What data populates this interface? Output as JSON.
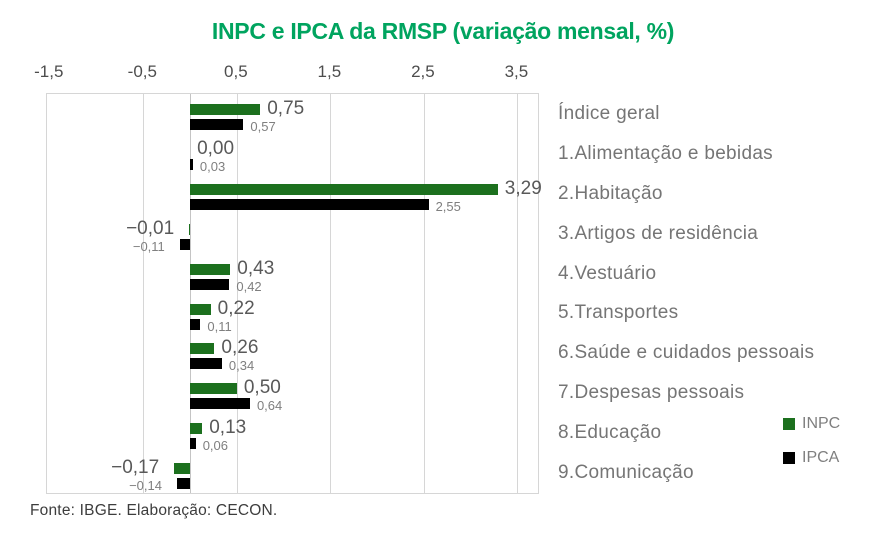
{
  "title": "INPC e IPCA da RMSP (variação mensal, %)",
  "footer": "Fonte: IBGE. Elaboração: CECON.",
  "colors": {
    "title_green": "#00A45F",
    "inpc_green": "#1C701E",
    "ipca_black": "#000000",
    "grid_gray": "#d6d6d6",
    "category_text": "#757575",
    "tick_text": "#4d4d4d",
    "value_label_large": "#595959",
    "value_label_small": "#7f7f7f"
  },
  "chart_data": {
    "type": "bar",
    "orientation": "horizontal",
    "title": "INPC e IPCA da RMSP (variação mensal, %)",
    "xlabel": "",
    "ylabel": "",
    "xlim": [
      -1.53,
      3.72
    ],
    "grid": true,
    "legend_position": "right-bottom",
    "x_ticks": [
      {
        "value": -1.5,
        "label": "-1,5"
      },
      {
        "value": -0.5,
        "label": "-0,5"
      },
      {
        "value": 0.5,
        "label": "0,5"
      },
      {
        "value": 1.5,
        "label": "1,5"
      },
      {
        "value": 2.5,
        "label": "2,5"
      },
      {
        "value": 3.5,
        "label": "3,5"
      }
    ],
    "gridline_values": [
      -0.5,
      0.5,
      1.5,
      2.5,
      3.5
    ],
    "categories": [
      "Índice geral",
      "1.Alimentação e bebidas",
      "2.Habitação",
      "3.Artigos de residência",
      "4.Vestuário",
      "5.Transportes",
      "6.Saúde e cuidados pessoais",
      "7.Despesas pessoais",
      "8.Educação",
      "9.Comunicação"
    ],
    "series": [
      {
        "name": "INPC",
        "color": "#1C701E",
        "values": [
          0.75,
          0.0,
          3.29,
          -0.01,
          0.43,
          0.22,
          0.26,
          0.5,
          0.13,
          -0.17
        ],
        "labels": [
          "0,75",
          "0,00",
          "3,29",
          "−0,01",
          "0,43",
          "0,22",
          "0,26",
          "0,50",
          "0,13",
          "−0,17"
        ]
      },
      {
        "name": "IPCA",
        "color": "#000000",
        "values": [
          0.57,
          0.03,
          2.55,
          -0.11,
          0.42,
          0.11,
          0.34,
          0.64,
          0.06,
          -0.14
        ],
        "labels": [
          "0,57",
          "0,03",
          "2,55",
          "−0,11",
          "0,42",
          "0,11",
          "0,34",
          "0,64",
          "0,06",
          "−0,14"
        ]
      }
    ]
  }
}
